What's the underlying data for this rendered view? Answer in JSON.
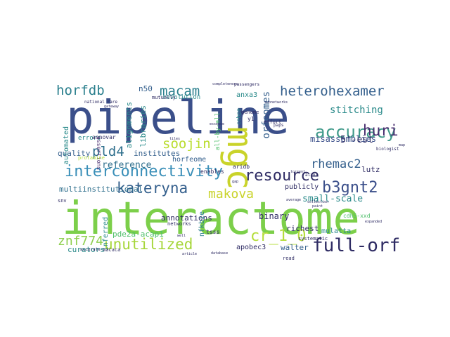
{
  "palette": {
    "navy": "#3b4f8a",
    "purple": "#472b6e",
    "deep": "#2e2b63",
    "teal": "#2a8a8a",
    "cyan": "#2f6f8d",
    "green": "#4fbf6b",
    "lime": "#a6d63a",
    "yellow": "#d4d52b",
    "olive": "#8fcf50"
  },
  "words": [
    {
      "key": "interactome",
      "text": "interactome",
      "color": "#7ccf4a"
    },
    {
      "key": "pipeline",
      "text": "pipeline",
      "color": "#3b4f8a"
    },
    {
      "key": "mgc",
      "text": "mgc",
      "color": "#c9d32a"
    },
    {
      "key": "accuracy",
      "text": "accuracy",
      "color": "#3f9a8a"
    },
    {
      "key": "interconnectivity",
      "text": "interconnectivity",
      "color": "#3a8fb8"
    },
    {
      "key": "full-orf",
      "text": "full-orf",
      "color": "#2e2b63"
    },
    {
      "key": "b3gnt2",
      "text": "b3gnt2",
      "color": "#3b4f8a"
    },
    {
      "key": "kateryna",
      "text": "kateryna",
      "color": "#35608d"
    },
    {
      "key": "resource",
      "text": "resource",
      "color": "#2e2b63"
    },
    {
      "key": "unutilized",
      "text": "unutilized",
      "color": "#a6d63a"
    },
    {
      "key": "cr_1_0",
      "text": "cr_1_0",
      "color": "#b5dd3b"
    },
    {
      "key": "heterohexamer",
      "text": "heterohexamer",
      "color": "#35608d"
    },
    {
      "key": "horfdb",
      "text": "horfdb",
      "color": "#2a7f8d"
    },
    {
      "key": "macam",
      "text": "macam",
      "color": "#2a7f8d"
    },
    {
      "key": "soojin",
      "text": "soojin",
      "color": "#b9dc2c"
    },
    {
      "key": "huri",
      "text": "huri",
      "color": "#472b6e"
    },
    {
      "key": "pld4",
      "text": "pld4",
      "color": "#2f6f8d"
    },
    {
      "key": "makova",
      "text": "makova",
      "color": "#c9d32a"
    },
    {
      "key": "rhemac2",
      "text": "rhemac2",
      "color": "#35608d"
    },
    {
      "key": "znf774",
      "text": "znf774",
      "color": "#8fcf50"
    },
    {
      "key": "misassemblies",
      "text": "misassemblies",
      "color": "#3b4f8a"
    },
    {
      "key": "stitching",
      "text": "stitching",
      "color": "#2a8a8a"
    },
    {
      "key": "reference",
      "text": "reference",
      "color": "#2f6f8d"
    },
    {
      "key": "annotations",
      "text": "annotations",
      "color": "#2e2b63"
    },
    {
      "key": "multiinstitutional",
      "text": "multiinstitutional",
      "color": "#2f6f8d"
    },
    {
      "key": "curators",
      "text": "curators",
      "color": "#2a8a8a"
    },
    {
      "key": "quality",
      "text": "quality",
      "color": "#35608d"
    },
    {
      "key": "institutes",
      "text": "institutes",
      "color": "#35608d"
    },
    {
      "key": "horfeome",
      "text": "horfeome",
      "color": "#35608d"
    },
    {
      "key": "revolution",
      "text": "revolution",
      "color": "#2a8a8a"
    },
    {
      "key": "errors",
      "text": "errors",
      "color": "#2a8a8a"
    },
    {
      "key": "assertions",
      "text": "assertions",
      "color": "#472b6e"
    },
    {
      "key": "n50",
      "text": "n50",
      "color": "#35608d"
    },
    {
      "key": "anxa3",
      "text": "anxa3",
      "color": "#2a8a8a"
    },
    {
      "key": "orfeomes",
      "text": "orfeomes",
      "color": "#35608d"
    },
    {
      "key": "5est",
      "text": "5'-est",
      "color": "#2e2b63"
    },
    {
      "key": "lutz",
      "text": "lutz",
      "color": "#2e2b63"
    },
    {
      "key": "small-scale",
      "text": "small-scale",
      "color": "#2a8a8a"
    },
    {
      "key": "binary",
      "text": "binary",
      "color": "#2e2b63"
    },
    {
      "key": "richest",
      "text": "richest",
      "color": "#2e2b63"
    },
    {
      "key": "mulatta",
      "text": "mulatta",
      "color": "#2a8a8a"
    },
    {
      "key": "walter",
      "text": "walter",
      "color": "#35608d"
    },
    {
      "key": "apobec3",
      "text": "apobec3",
      "color": "#2e2b63"
    },
    {
      "key": "pde2a",
      "text": "pde2a-acap1",
      "color": "#4fbf6b"
    },
    {
      "key": "inferred",
      "text": "inferred",
      "color": "#2a8a8a"
    },
    {
      "key": "publicly",
      "text": "publicly",
      "color": "#2e2b63"
    },
    {
      "key": "nfkbie",
      "text": "nfkbie",
      "color": "#2a7f8d"
    },
    {
      "key": "aridb",
      "text": "aridb",
      "color": "#2e2b63"
    },
    {
      "key": "enables",
      "text": "enables",
      "color": "#2e2b63"
    },
    {
      "key": "cdh5xxd",
      "text": "cdh5-xxd",
      "color": "#4fbf6b"
    },
    {
      "key": "tsss",
      "text": "tsss",
      "color": "#2e2b63"
    },
    {
      "key": "macaca",
      "text": "macaca",
      "color": "#2e2b63"
    },
    {
      "key": "protein",
      "text": "protamine",
      "color": "#b5dd3b"
    },
    {
      "key": "libraries",
      "text": "libraries",
      "color": "#2a8a8a"
    },
    {
      "key": "alignments",
      "text": "alignments",
      "color": "#2a8a8a"
    },
    {
      "key": "automated",
      "text": "automated",
      "color": "#2a8a8a"
    },
    {
      "key": "allbyall",
      "text": "all-by-all",
      "color": "#4fbf6b"
    },
    {
      "key": "cebpa",
      "text": "cebpa",
      "color": "#2a8a8a"
    },
    {
      "key": "mutually",
      "text": "mutually",
      "color": "#2e2b63"
    },
    {
      "key": "y1",
      "text": "y1",
      "color": "#2e2b63"
    },
    {
      "key": "genome",
      "text": "genome",
      "color": "#2e2b63"
    },
    {
      "key": "read",
      "text": "read",
      "color": "#2e2b63"
    },
    {
      "key": "systematic",
      "text": "systematic",
      "color": "#2e2b63"
    },
    {
      "key": "snv",
      "text": "snv",
      "color": "#2e2b63"
    },
    {
      "key": "accurate",
      "text": "accurate",
      "color": "#2e2b63"
    },
    {
      "key": "networks",
      "text": "networks",
      "color": "#2e2b63"
    },
    {
      "key": "passengers",
      "text": "passengers",
      "color": "#2e2b63"
    },
    {
      "key": "completeness",
      "text": "completeness",
      "color": "#2e2b63"
    },
    {
      "key": "national",
      "text": "national rare",
      "color": "#2e2b63"
    },
    {
      "key": "subnetworks",
      "text": "subnetworks",
      "color": "#2e2b63"
    },
    {
      "key": "effort",
      "text": "effort",
      "color": "#2e2b63"
    },
    {
      "key": "paps",
      "text": "paps",
      "color": "#2e2b63"
    },
    {
      "key": "atxn1",
      "text": "atxn1",
      "color": "#2e2b63"
    },
    {
      "key": "collection",
      "text": "collection",
      "color": "#2e2b63"
    },
    {
      "key": "map",
      "text": "map",
      "color": "#2e2b63"
    },
    {
      "key": "biologist",
      "text": "biologist",
      "color": "#2e2b63"
    },
    {
      "key": "essence",
      "text": "essence",
      "color": "#2e2b63"
    },
    {
      "key": "average",
      "text": "average",
      "color": "#2e2b63"
    },
    {
      "key": "expanded",
      "text": "expanded",
      "color": "#2e2b63"
    },
    {
      "key": "article",
      "text": "article",
      "color": "#2e2b63"
    },
    {
      "key": "database",
      "text": "database",
      "color": "#2e2b63"
    },
    {
      "key": "paint",
      "text": "paint",
      "color": "#2e2b63"
    },
    {
      "key": "torrent",
      "text": "torrent",
      "color": "#2e2b63"
    },
    {
      "key": "tiles",
      "text": "tiles",
      "color": "#2e2b63"
    },
    {
      "key": "gateway",
      "text": "gateway",
      "color": "#2e2b63"
    },
    {
      "key": "well",
      "text": "well",
      "color": "#2e2b63"
    },
    {
      "key": "gap",
      "text": "gap",
      "color": "#2e2b63"
    },
    {
      "key": "annovar",
      "text": "annovar",
      "color": "#2e2b63"
    }
  ]
}
